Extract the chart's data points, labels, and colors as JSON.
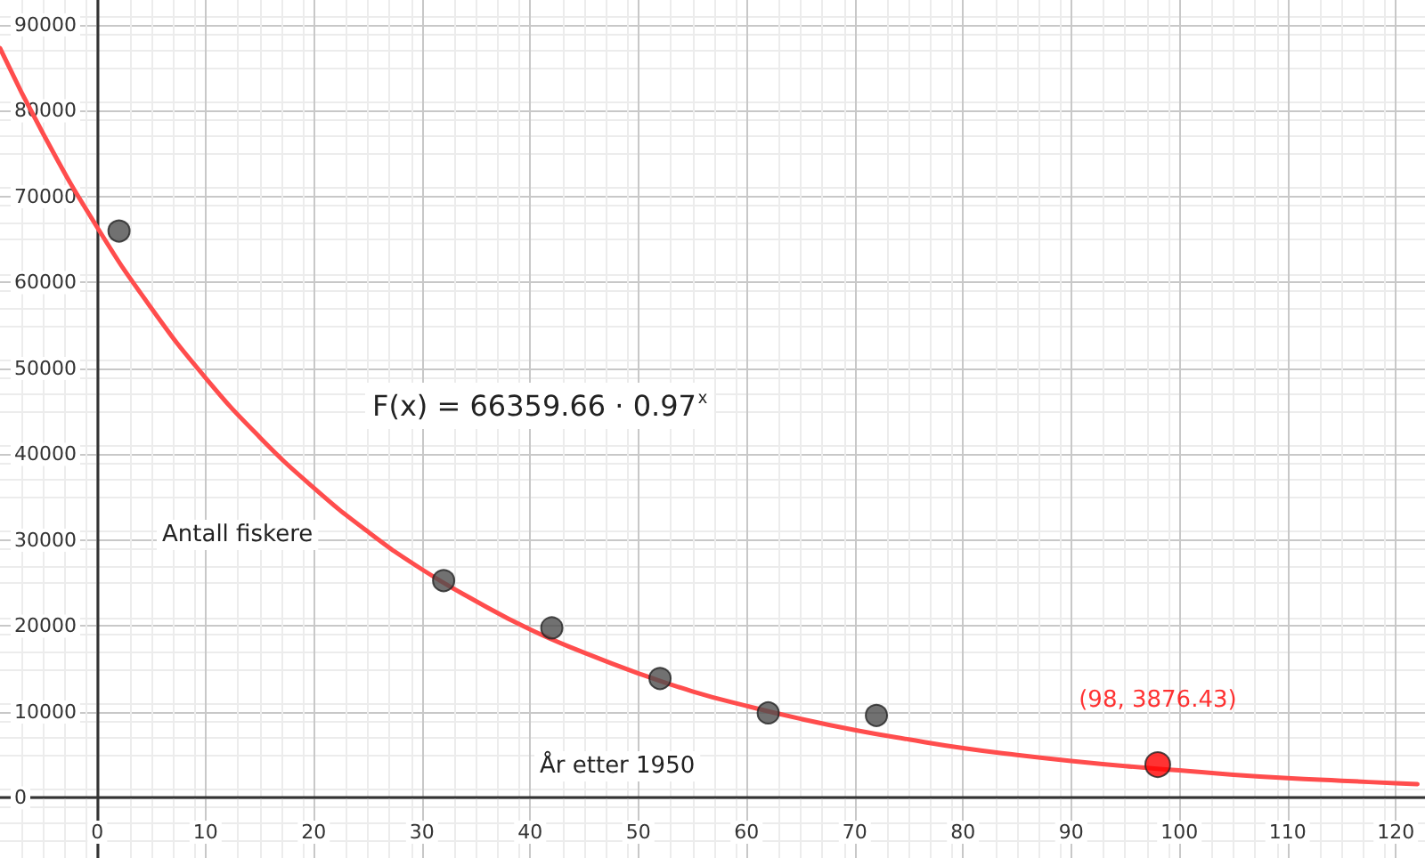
{
  "chart_data": {
    "type": "scatter",
    "xlabel": "År etter 1950",
    "ylabel": "Antall fiskere",
    "annotations": [
      "F(x) = 66359.66 · 0.97$^{x}$"
    ],
    "xlim": [
      -9,
      122.7
    ],
    "xticks": [
      0,
      10,
      20,
      30,
      40,
      50,
      60,
      70,
      80,
      90,
      100,
      110,
      120
    ],
    "ylim": [
      -7000,
      92900
    ],
    "yticks": [
      0,
      10000,
      20000,
      30000,
      40000,
      50000,
      60000,
      70000,
      80000,
      90000
    ],
    "grid": true,
    "marker": "circle",
    "series": [
      {
        "type": "line",
        "color": "#ff4d4d",
        "marker": "none",
        "x": [
          -9,
          -5,
          0,
          5,
          10,
          15,
          20,
          25,
          30,
          35,
          40,
          45,
          50,
          55,
          60,
          65,
          70,
          75,
          80,
          85,
          90,
          95,
          100,
          105,
          110,
          115,
          120,
          122
        ],
        "values": [
          87300,
          77300,
          66400,
          57000,
          48900,
          42000,
          36100,
          31000,
          26600,
          22900,
          19600,
          16900,
          14500,
          12400,
          10700,
          9200,
          7900,
          6800,
          5800,
          5000,
          4300,
          3700,
          3200,
          2700,
          2300,
          2000,
          1700,
          1600
        ]
      },
      {
        "color": "#4d4d4d",
        "x": [
          2,
          32,
          42,
          52,
          62,
          72
        ],
        "values": [
          66000,
          25300,
          19800,
          13900,
          9900,
          9600
        ]
      },
      {
        "color": "#ff0000",
        "x": [
          98
        ],
        "values": [
          3876.43
        ],
        "value_labels": [
          "(98, 3876.43)"
        ]
      }
    ]
  }
}
